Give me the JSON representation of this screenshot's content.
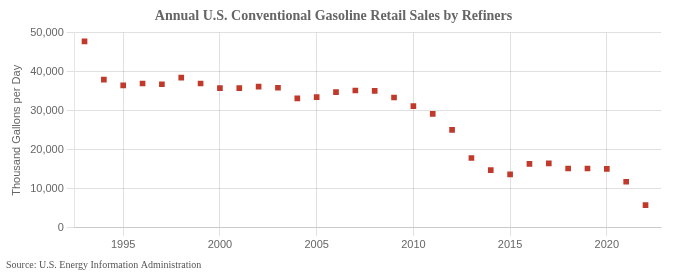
{
  "chart_data": {
    "type": "scatter",
    "title": "Annual U.S. Conventional Gasoline Retail Sales by Refiners",
    "ylabel": "Thousand Gallons per Day",
    "source": "Source: U.S. Energy Information Administration",
    "x": [
      1993,
      1994,
      1995,
      1996,
      1997,
      1998,
      1999,
      2000,
      2001,
      2002,
      2003,
      2004,
      2005,
      2006,
      2007,
      2008,
      2009,
      2010,
      2011,
      2012,
      2013,
      2014,
      2015,
      2016,
      2017,
      2018,
      2019,
      2020,
      2021,
      2022
    ],
    "values": [
      47800,
      38000,
      36500,
      37000,
      36800,
      38500,
      37000,
      35800,
      35800,
      36200,
      35900,
      33200,
      33500,
      34800,
      35200,
      35100,
      33400,
      31200,
      29200,
      25100,
      17900,
      14800,
      13700,
      16400,
      16500,
      15200,
      15200,
      15100,
      11800,
      5800
    ],
    "color": "#c0392b",
    "marker": "square",
    "xlim": [
      1992.5,
      2022.8
    ],
    "xticks": [
      1995,
      2000,
      2005,
      2010,
      2015,
      2020
    ],
    "ylim": [
      0,
      50000
    ],
    "yticks": [
      0,
      {
        "value": 10000,
        "label": "10,000"
      },
      {
        "value": 20000,
        "label": "20,000"
      },
      {
        "value": 30000,
        "label": "30,000"
      },
      {
        "value": 40000,
        "label": "40,000"
      },
      {
        "value": 50000,
        "label": "50,000"
      }
    ],
    "grid": true
  }
}
